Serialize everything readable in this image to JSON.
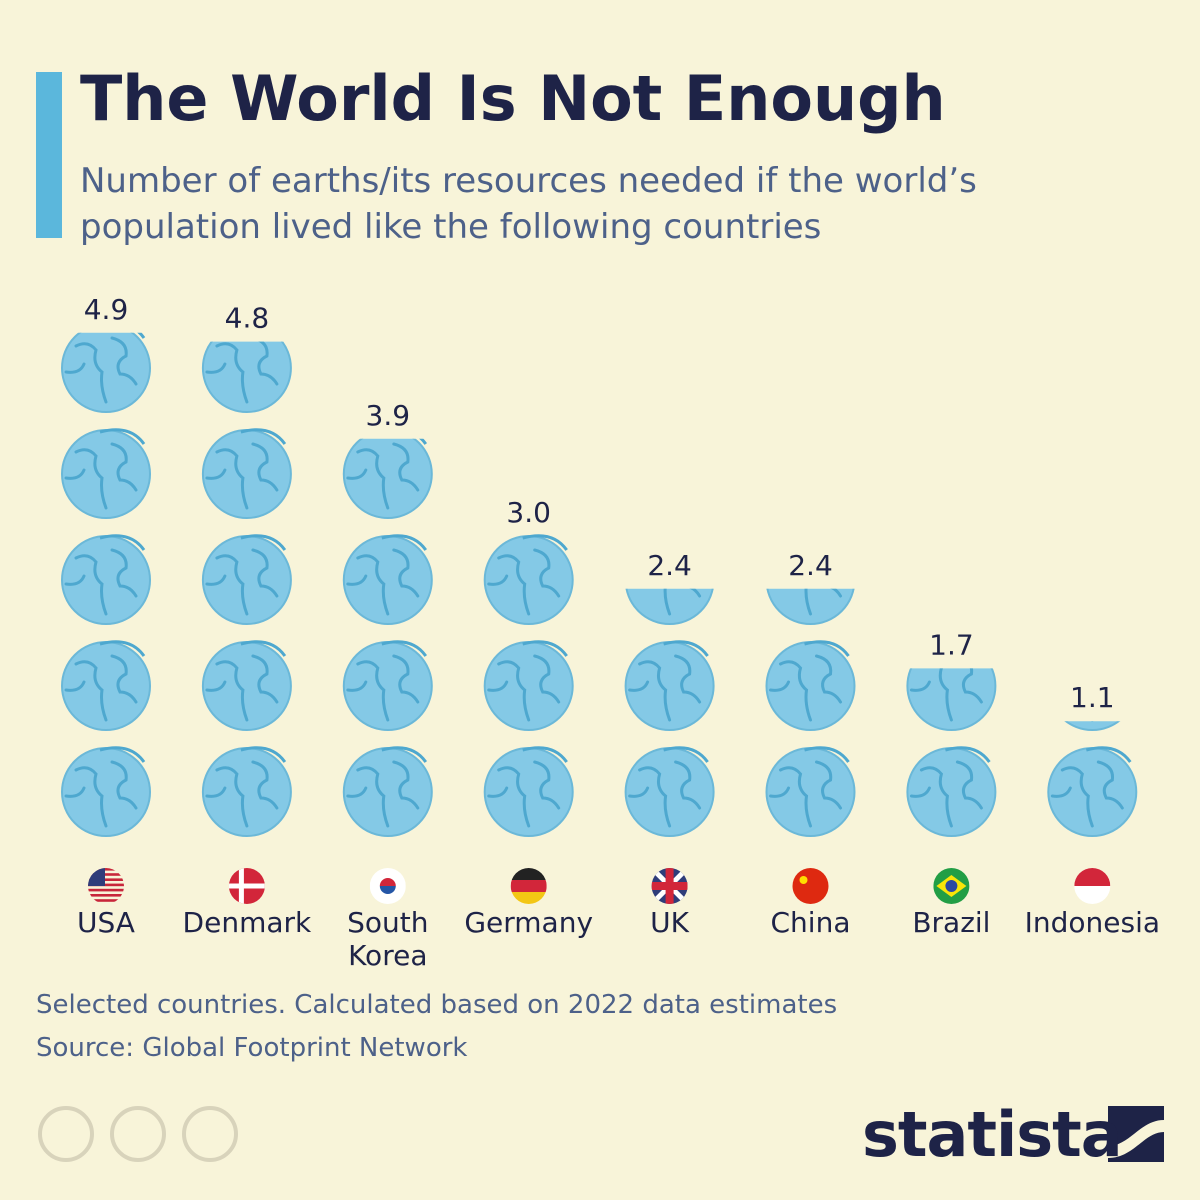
{
  "chart_data": {
    "type": "pictogram",
    "title": "The World Is Not Enough",
    "subtitle": "Number of earths/its resources needed if the world’s population lived like the following countries",
    "categories": [
      "USA",
      "Denmark",
      "South Korea",
      "Germany",
      "UK",
      "China",
      "Brazil",
      "Indonesia"
    ],
    "values": [
      4.9,
      4.8,
      3.9,
      3.0,
      2.4,
      2.4,
      1.7,
      1.1
    ],
    "value_labels": [
      "4.9",
      "4.8",
      "3.9",
      "3.0",
      "2.4",
      "2.4",
      "1.7",
      "1.1"
    ],
    "color": "#84c9e6",
    "note": "Selected countries. Calculated based on 2022 data estimates",
    "source": "Source: Global Footprint Network",
    "brand": "statista"
  }
}
